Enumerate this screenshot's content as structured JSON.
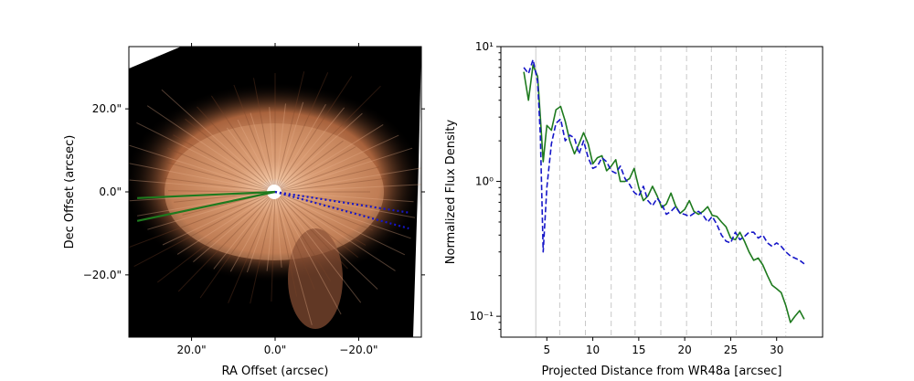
{
  "chart_data": [
    {
      "type": "image",
      "xlabel": "RA Offset (arcsec)",
      "ylabel": "Dec Offset (arcsec)",
      "xlim": [
        35,
        -35
      ],
      "ylim": [
        -35,
        35
      ],
      "xticks": [
        20,
        0,
        -20
      ],
      "xtick_labels": [
        "20.0\"",
        "0.0\"",
        "−20.0\""
      ],
      "yticks": [
        20,
        0,
        -20
      ],
      "ytick_labels": [
        "20.0\"",
        "0.0\"",
        "−20.0\""
      ],
      "colors": {
        "image_glow": "#d4936a",
        "background": "#000000",
        "cone_a": "#1e7a1e",
        "cone_b": "#1616c8"
      },
      "wedges": [
        {
          "style": "solid",
          "color": "#1e7a1e",
          "x": [
            0,
            33,
            0,
            33
          ],
          "y": [
            0,
            -1.5,
            0,
            -7.0
          ]
        },
        {
          "style": "dotted",
          "color": "#1616c8",
          "x": [
            0,
            -32,
            0,
            -32
          ],
          "y": [
            0,
            -5.0,
            0,
            -8.8
          ]
        }
      ]
    },
    {
      "type": "line",
      "xlabel": "Projected Distance from WR48a [arcsec]",
      "ylabel": "Normalized Flux Density",
      "xlim": [
        0,
        35
      ],
      "ylim": [
        0.07,
        10
      ],
      "yscale": "log",
      "xticks": [
        5,
        10,
        15,
        20,
        25,
        30
      ],
      "xtick_labels": [
        "5",
        "10",
        "15",
        "20",
        "25",
        "30"
      ],
      "yticks": [
        0.1,
        1,
        10
      ],
      "ytick_labels": [
        "10⁻¹",
        "10⁰",
        "10¹"
      ],
      "vlines_solid": [
        3.8
      ],
      "vlines_dashed": [
        6.4,
        9.2,
        12.0,
        14.6,
        17.4,
        20.2,
        22.9,
        25.6,
        28.4
      ],
      "vlines_dotted": [
        31.0
      ],
      "series": [
        {
          "color": "#1e7a1e",
          "style": "solid",
          "x": [
            2.5,
            3.0,
            3.5,
            4.0,
            4.3,
            4.6,
            5.0,
            5.5,
            6.0,
            6.5,
            7.0,
            7.5,
            8.0,
            8.5,
            9.0,
            9.5,
            10.0,
            10.5,
            11.0,
            11.5,
            12.0,
            12.5,
            13.0,
            13.5,
            14.0,
            14.5,
            15.0,
            15.5,
            16.0,
            16.5,
            17.0,
            17.5,
            18.0,
            18.5,
            19.0,
            19.5,
            20.0,
            20.5,
            21.0,
            21.5,
            22.0,
            22.5,
            23.0,
            23.5,
            24.0,
            24.5,
            25.0,
            25.5,
            26.0,
            26.5,
            27.0,
            27.5,
            28.0,
            28.5,
            29.0,
            29.5,
            30.0,
            30.5,
            31.0,
            31.5,
            32.0,
            32.5,
            33.0
          ],
          "y": [
            6.5,
            4.0,
            7.3,
            6.0,
            3.0,
            1.4,
            2.6,
            2.4,
            3.4,
            3.6,
            2.8,
            2.0,
            1.6,
            1.9,
            2.3,
            1.9,
            1.35,
            1.5,
            1.55,
            1.2,
            1.3,
            1.45,
            1.0,
            1.0,
            1.05,
            1.25,
            0.9,
            0.72,
            0.78,
            0.92,
            0.78,
            0.64,
            0.68,
            0.82,
            0.66,
            0.58,
            0.62,
            0.72,
            0.6,
            0.57,
            0.6,
            0.65,
            0.56,
            0.55,
            0.5,
            0.46,
            0.38,
            0.37,
            0.42,
            0.36,
            0.3,
            0.26,
            0.27,
            0.24,
            0.2,
            0.17,
            0.16,
            0.15,
            0.12,
            0.09,
            0.1,
            0.11,
            0.095
          ]
        },
        {
          "color": "#1616c8",
          "style": "dashed",
          "x": [
            2.5,
            3.0,
            3.5,
            4.0,
            4.3,
            4.6,
            5.0,
            5.5,
            6.0,
            6.5,
            7.0,
            7.5,
            8.0,
            8.5,
            9.0,
            9.5,
            10.0,
            10.5,
            11.0,
            11.5,
            12.0,
            12.5,
            13.0,
            13.5,
            14.0,
            14.5,
            15.0,
            15.5,
            16.0,
            16.5,
            17.0,
            17.5,
            18.0,
            18.5,
            19.0,
            19.5,
            20.0,
            20.5,
            21.0,
            21.5,
            22.0,
            22.5,
            23.0,
            23.5,
            24.0,
            24.5,
            25.0,
            25.5,
            26.0,
            26.5,
            27.0,
            27.5,
            28.0,
            28.5,
            29.0,
            29.5,
            30.0,
            30.5,
            31.0,
            31.5,
            32.0,
            32.5,
            33.0
          ],
          "y": [
            7.0,
            6.3,
            8.0,
            5.5,
            2.2,
            0.3,
            0.9,
            1.9,
            2.7,
            2.9,
            2.0,
            2.2,
            2.1,
            1.6,
            2.0,
            1.5,
            1.25,
            1.3,
            1.5,
            1.4,
            1.2,
            1.15,
            1.3,
            1.05,
            0.95,
            0.83,
            0.78,
            0.92,
            0.72,
            0.66,
            0.75,
            0.68,
            0.57,
            0.6,
            0.65,
            0.58,
            0.57,
            0.55,
            0.58,
            0.6,
            0.56,
            0.5,
            0.55,
            0.48,
            0.4,
            0.36,
            0.35,
            0.42,
            0.37,
            0.39,
            0.42,
            0.42,
            0.38,
            0.4,
            0.35,
            0.33,
            0.35,
            0.33,
            0.3,
            0.28,
            0.27,
            0.26,
            0.245
          ]
        }
      ]
    }
  ]
}
